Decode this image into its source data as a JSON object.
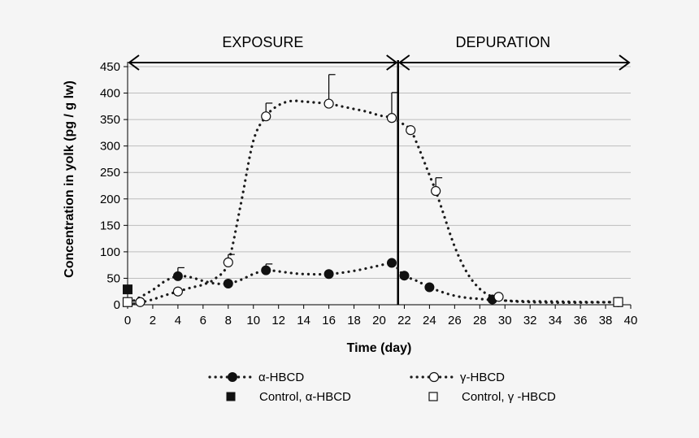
{
  "chart_data": {
    "type": "line",
    "xlabel": "Time (day)",
    "ylabel": "Concentration in yolk (pg / g lw)",
    "xlim": [
      0,
      40
    ],
    "ylim": [
      0,
      450
    ],
    "x_ticks": [
      0,
      2,
      4,
      6,
      8,
      10,
      12,
      14,
      16,
      18,
      20,
      22,
      24,
      26,
      28,
      30,
      32,
      34,
      36,
      38,
      40
    ],
    "y_ticks": [
      0,
      50,
      100,
      150,
      200,
      250,
      300,
      350,
      400,
      450
    ],
    "grid": true,
    "phases": [
      {
        "label": "EXPOSURE",
        "x_start": 0,
        "x_end": 21.5
      },
      {
        "label": "DEPURATION",
        "x_start": 21.5,
        "x_end": 40
      }
    ],
    "divider_x": 21.5,
    "series": [
      {
        "name": "α-HBCD",
        "marker": "filled-circle",
        "x": [
          1,
          4,
          8,
          11,
          16,
          21,
          22,
          24,
          29,
          39
        ],
        "y": [
          5,
          54,
          40,
          65,
          58,
          79,
          55,
          33,
          10,
          5
        ],
        "error_plus": [
          0,
          16,
          0,
          12,
          0,
          0,
          0,
          0,
          0,
          0
        ],
        "curve": [
          [
            0.5,
            8
          ],
          [
            2,
            28
          ],
          [
            3,
            45
          ],
          [
            4,
            54
          ],
          [
            5,
            52
          ],
          [
            6,
            45
          ],
          [
            7,
            40
          ],
          [
            8,
            40
          ],
          [
            9,
            47
          ],
          [
            10,
            58
          ],
          [
            11,
            65
          ],
          [
            12,
            63
          ],
          [
            13,
            60
          ],
          [
            14,
            58
          ],
          [
            16,
            58
          ],
          [
            18,
            64
          ],
          [
            20,
            74
          ],
          [
            21,
            79
          ],
          [
            21.5,
            68
          ],
          [
            22,
            55
          ],
          [
            23,
            45
          ],
          [
            24,
            33
          ],
          [
            25,
            24
          ],
          [
            26,
            17
          ],
          [
            27,
            13
          ],
          [
            28,
            11
          ],
          [
            29,
            9
          ],
          [
            31,
            7
          ],
          [
            34,
            6
          ],
          [
            37,
            5
          ],
          [
            39,
            5
          ]
        ]
      },
      {
        "name": "γ-HBCD",
        "marker": "open-circle",
        "x": [
          1,
          4,
          8,
          11,
          16,
          21,
          22.5,
          24.5,
          29.5,
          39
        ],
        "y": [
          5,
          25,
          80,
          356,
          380,
          353,
          330,
          215,
          15,
          5
        ],
        "error_plus": [
          0,
          0,
          15,
          25,
          55,
          48,
          0,
          25,
          0,
          0
        ],
        "curve": [
          [
            0.5,
            2
          ],
          [
            1,
            4
          ],
          [
            2,
            10
          ],
          [
            3,
            18
          ],
          [
            4,
            25
          ],
          [
            5,
            32
          ],
          [
            6,
            38
          ],
          [
            7,
            50
          ],
          [
            8,
            80
          ],
          [
            9,
            190
          ],
          [
            10,
            310
          ],
          [
            11,
            356
          ],
          [
            12,
            377
          ],
          [
            13,
            385
          ],
          [
            14,
            384
          ],
          [
            15,
            382
          ],
          [
            16,
            380
          ],
          [
            17,
            375
          ],
          [
            18,
            370
          ],
          [
            19,
            365
          ],
          [
            20,
            358
          ],
          [
            21,
            353
          ],
          [
            22,
            340
          ],
          [
            22.5,
            330
          ],
          [
            23,
            305
          ],
          [
            24,
            245
          ],
          [
            24.5,
            215
          ],
          [
            25,
            180
          ],
          [
            26,
            110
          ],
          [
            27,
            60
          ],
          [
            28,
            30
          ],
          [
            29,
            15
          ],
          [
            30,
            8
          ],
          [
            32,
            5
          ],
          [
            35,
            4
          ],
          [
            39,
            5
          ]
        ]
      },
      {
        "name": "Control, α-HBCD",
        "marker": "filled-square",
        "x": [
          0
        ],
        "y": [
          29
        ]
      },
      {
        "name": "Control, γ -HBCD",
        "marker": "open-square",
        "x": [
          0,
          39
        ],
        "y": [
          5,
          5
        ]
      }
    ],
    "legend_placement": "bottom"
  }
}
